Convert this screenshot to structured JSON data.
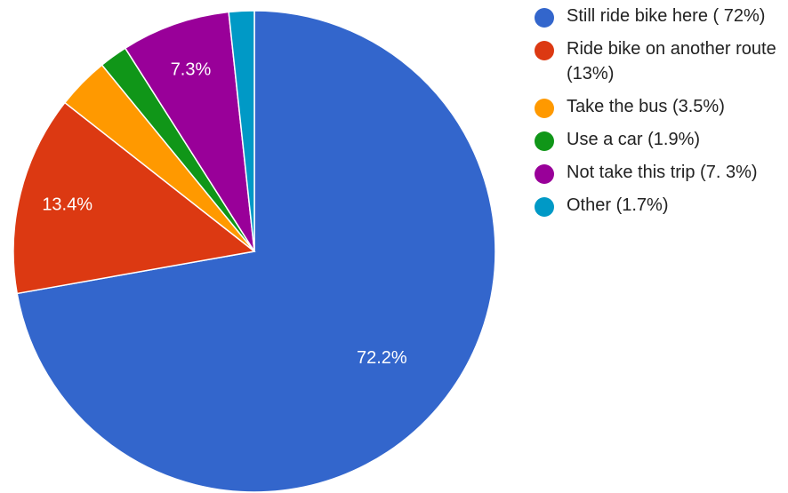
{
  "chart_data": {
    "type": "pie",
    "title": "",
    "legend_position": "right",
    "slices": [
      {
        "name": "Still ride bike here ( 72%)",
        "value": 72.2,
        "data_label": "72.2%",
        "color": "#3366cc"
      },
      {
        "name": "Ride bike on another route (13%)",
        "value": 13.4,
        "data_label": "13.4%",
        "color": "#dc3912"
      },
      {
        "name": "Take the bus (3.5%)",
        "value": 3.5,
        "data_label": "",
        "color": "#ff9900"
      },
      {
        "name": "Use a car (1.9%)",
        "value": 1.9,
        "data_label": "",
        "color": "#109618"
      },
      {
        "name": "Not take this trip (7. 3%)",
        "value": 7.3,
        "data_label": "7.3%",
        "color": "#990099"
      },
      {
        "name": "Other (1.7%)",
        "value": 1.7,
        "data_label": "",
        "color": "#0099c6"
      }
    ]
  }
}
